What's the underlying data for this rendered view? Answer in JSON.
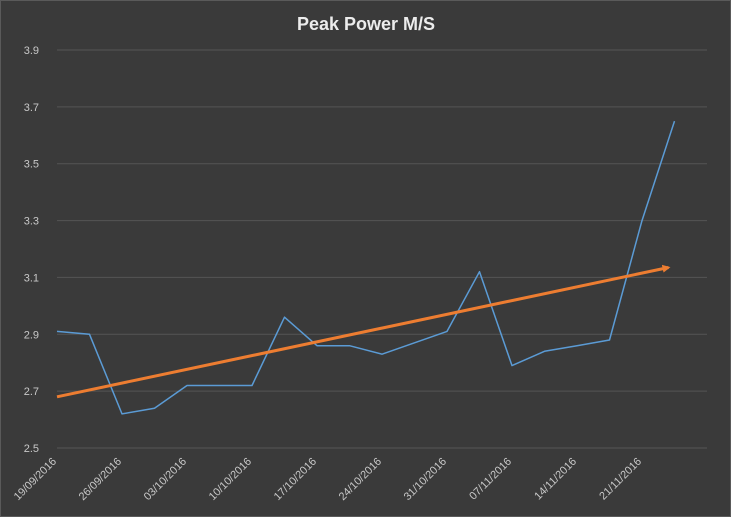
{
  "chart_data": {
    "type": "line",
    "title": "Peak Power M/S",
    "xlabel": "",
    "ylabel": "",
    "ylim": [
      2.5,
      3.9
    ],
    "yticks": [
      "2.5",
      "2.7",
      "2.9",
      "3.1",
      "3.3",
      "3.5",
      "3.7",
      "3.9"
    ],
    "grid": true,
    "legend": "none",
    "x_tick_labels": [
      "19/09/2016",
      "26/09/2016",
      "03/10/2016",
      "10/10/2016",
      "17/10/2016",
      "24/10/2016",
      "31/10/2016",
      "07/11/2016",
      "14/11/2016",
      "21/11/2016"
    ],
    "x": [
      "19/09/2016",
      "22/09/2016",
      "26/09/2016",
      "29/09/2016",
      "03/10/2016",
      "06/10/2016",
      "10/10/2016",
      "13/10/2016",
      "17/10/2016",
      "20/10/2016",
      "24/10/2016",
      "27/10/2016",
      "31/10/2016",
      "03/11/2016",
      "07/11/2016",
      "10/11/2016",
      "14/11/2016",
      "17/11/2016",
      "21/11/2016",
      "24/11/2016"
    ],
    "series": [
      {
        "values": [
          2.91,
          2.9,
          2.62,
          2.64,
          2.72,
          2.72,
          2.72,
          2.96,
          2.86,
          2.86,
          2.83,
          2.87,
          2.91,
          3.12,
          2.79,
          2.84,
          2.86,
          2.88,
          3.3,
          3.65
        ],
        "color": "#5b9bd5"
      }
    ],
    "trendline": {
      "kind": "linear",
      "start": 2.68,
      "end": 3.135,
      "color": "#ed7d31",
      "arrow_end": true
    }
  }
}
